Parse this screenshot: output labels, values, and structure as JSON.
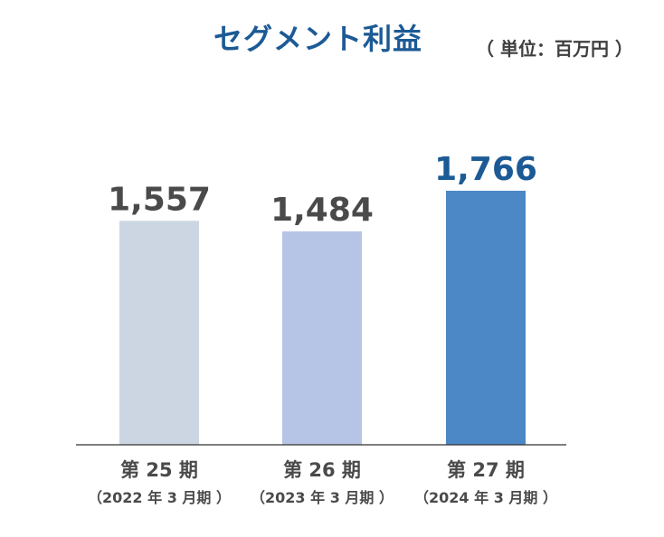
{
  "chart_data": {
    "type": "bar",
    "title": "セグメント利益",
    "unit": "（ 単位：百万円 ）",
    "categories": [
      "第 25 期",
      "第 26 期",
      "第 27 期"
    ],
    "sublabels": [
      "（2022 年 3 月期 ）",
      "（2023 年 3 月期 ）",
      "（2024 年 3 月期 ）"
    ],
    "values": [
      1557,
      1484,
      1766
    ],
    "value_labels": [
      "1,557",
      "1,484",
      "1,766"
    ],
    "bar_colors": [
      "#ccd6e3",
      "#b6c5e5",
      "#4d88c6"
    ],
    "label_colors": [
      "#4a4a4a",
      "#4a4a4a",
      "#1c5a95"
    ],
    "ylim": [
      0,
      1766
    ],
    "grid": false
  }
}
